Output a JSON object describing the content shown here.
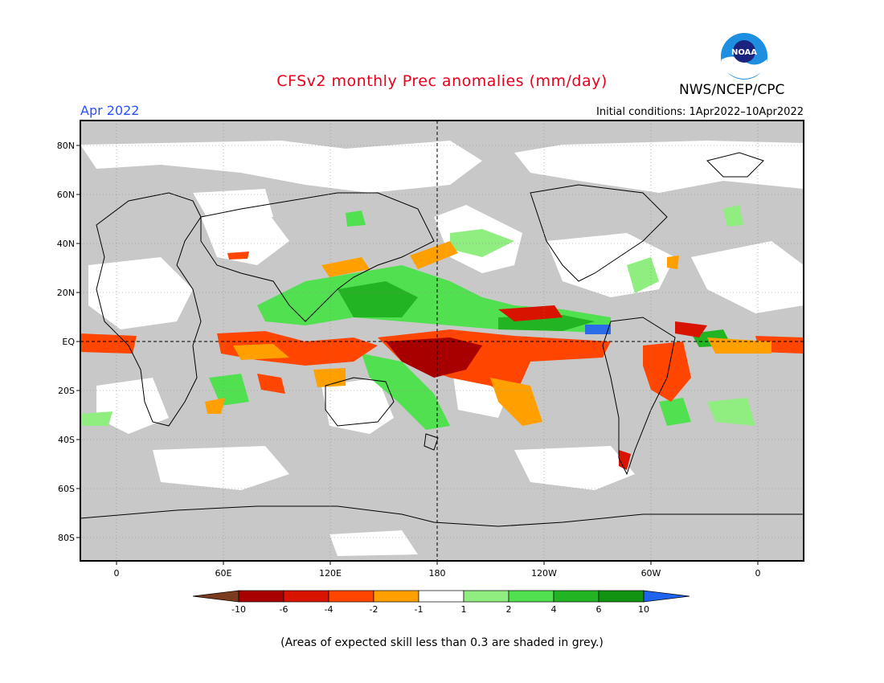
{
  "header": {
    "title": "CFSv2 monthly Prec anomalies (mm/day)",
    "agency": "NWS/NCEP/CPC",
    "logo_text": "NOAA",
    "month": "Apr 2022",
    "initial_conditions": "Initial conditions: 1Apr2022–10Apr2022"
  },
  "map": {
    "lat_labels": [
      "80N",
      "60N",
      "40N",
      "20N",
      "EQ",
      "20S",
      "40S",
      "60S",
      "80S"
    ],
    "lon_labels": [
      "0",
      "60E",
      "120E",
      "180",
      "120W",
      "60W",
      "0"
    ]
  },
  "legend": {
    "tick_labels": [
      "-10",
      "-6",
      "-4",
      "-2",
      "-1",
      "1",
      "2",
      "4",
      "6",
      "10"
    ],
    "colors": [
      "#7b3b1e",
      "#a80000",
      "#d81400",
      "#ff4500",
      "#ffa000",
      "#ffffff",
      "#90ee80",
      "#50e050",
      "#22b422",
      "#129412",
      "#1e64f0"
    ]
  },
  "colors": {
    "skill_mask_grey": "#c8c8c8",
    "title_red": "#e8001c",
    "month_blue": "#2a52ff"
  },
  "footnote": "(Areas of expected skill less than 0.3 are shaded in grey.)"
}
